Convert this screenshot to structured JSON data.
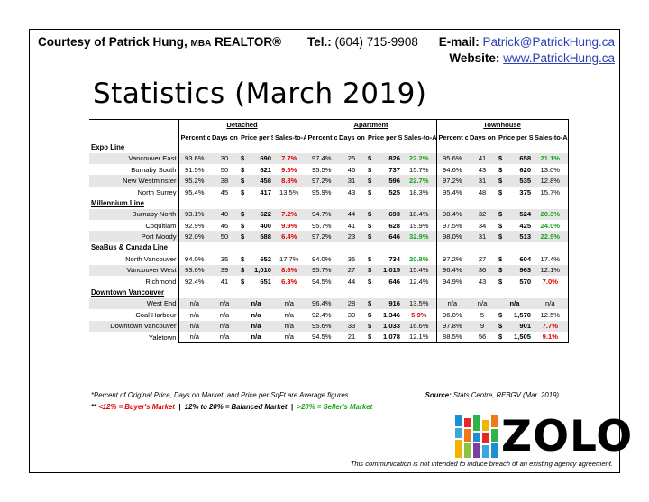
{
  "header": {
    "courtesy": "Courtesy of Patrick Hung,",
    "mba": "MBA",
    "realtor": "REALTOR®",
    "tel_label": "Tel.:",
    "tel_value": "(604) 715-9908",
    "email_label": "E-mail:",
    "email_value": "Patrick@PatrickHung.ca",
    "website_label": "Website:",
    "website_value": "www.PatrickHung.ca"
  },
  "title": "Statistics (March 2019)",
  "groups": [
    "Detached",
    "Apartment",
    "Townhouse"
  ],
  "columns": [
    "Percent of Original Price",
    "Days on Market",
    "Price per SqFt",
    "Sales-to-Active Ratio**"
  ],
  "colors": {
    "red": "#e00000",
    "green": "#1aa21a",
    "blue": "#2a3fb0",
    "shade": "#e6e6e6"
  },
  "sections": [
    {
      "name": "Expo Line",
      "rows": [
        {
          "area": "Vancouver East",
          "shade": true,
          "d": [
            "93.6%",
            "30",
            "690",
            "7.7%"
          ],
          "dc": "red",
          "a": [
            "97.4%",
            "25",
            "826",
            "22.2%"
          ],
          "ac": "green",
          "t": [
            "95.6%",
            "41",
            "658",
            "21.1%"
          ],
          "tc": "green"
        },
        {
          "area": "Burnaby South",
          "shade": false,
          "d": [
            "91.5%",
            "50",
            "621",
            "9.5%"
          ],
          "dc": "red",
          "a": [
            "95.5%",
            "46",
            "737",
            "15.7%"
          ],
          "ac": "",
          "t": [
            "94.6%",
            "43",
            "620",
            "13.0%"
          ],
          "tc": ""
        },
        {
          "area": "New Westminster",
          "shade": true,
          "d": [
            "95.2%",
            "38",
            "458",
            "8.8%"
          ],
          "dc": "red",
          "a": [
            "97.2%",
            "31",
            "596",
            "22.7%"
          ],
          "ac": "green",
          "t": [
            "97.2%",
            "31",
            "535",
            "12.8%"
          ],
          "tc": ""
        },
        {
          "area": "North Surrey",
          "shade": false,
          "d": [
            "95.4%",
            "45",
            "417",
            "13.5%"
          ],
          "dc": "",
          "a": [
            "95.9%",
            "43",
            "525",
            "18.3%"
          ],
          "ac": "",
          "t": [
            "95.4%",
            "48",
            "375",
            "15.7%"
          ],
          "tc": ""
        }
      ]
    },
    {
      "name": "Millennium Line",
      "rows": [
        {
          "area": "Burnaby North",
          "shade": true,
          "d": [
            "93.1%",
            "40",
            "622",
            "7.2%"
          ],
          "dc": "red",
          "a": [
            "94.7%",
            "44",
            "693",
            "18.4%"
          ],
          "ac": "",
          "t": [
            "98.4%",
            "32",
            "524",
            "20.3%"
          ],
          "tc": "green"
        },
        {
          "area": "Coquitlam",
          "shade": false,
          "d": [
            "92.9%",
            "46",
            "400",
            "9.9%"
          ],
          "dc": "red",
          "a": [
            "95.7%",
            "41",
            "628",
            "19.9%"
          ],
          "ac": "",
          "t": [
            "97.5%",
            "34",
            "425",
            "24.0%"
          ],
          "tc": "green"
        },
        {
          "area": "Port Moody",
          "shade": true,
          "d": [
            "92.0%",
            "50",
            "588",
            "6.4%"
          ],
          "dc": "red",
          "a": [
            "97.2%",
            "23",
            "646",
            "32.9%"
          ],
          "ac": "green",
          "t": [
            "98.0%",
            "31",
            "513",
            "22.9%"
          ],
          "tc": "green"
        }
      ]
    },
    {
      "name": "SeaBus & Canada Line",
      "rows": [
        {
          "area": "North Vancouver",
          "shade": false,
          "d": [
            "94.0%",
            "35",
            "652",
            "17.7%"
          ],
          "dc": "",
          "a": [
            "94.0%",
            "35",
            "734",
            "20.8%"
          ],
          "ac": "green",
          "t": [
            "97.2%",
            "27",
            "604",
            "17.4%"
          ],
          "tc": ""
        },
        {
          "area": "Vancouver West",
          "shade": true,
          "d": [
            "93.6%",
            "39",
            "1,010",
            "8.6%"
          ],
          "dc": "red",
          "a": [
            "95.7%",
            "27",
            "1,015",
            "15.4%"
          ],
          "ac": "",
          "t": [
            "96.4%",
            "36",
            "963",
            "12.1%"
          ],
          "tc": ""
        },
        {
          "area": "Richmond",
          "shade": false,
          "d": [
            "92.4%",
            "41",
            "651",
            "6.3%"
          ],
          "dc": "red",
          "a": [
            "94.5%",
            "44",
            "646",
            "12.4%"
          ],
          "ac": "",
          "t": [
            "94.9%",
            "43",
            "570",
            "7.0%"
          ],
          "tc": "red"
        }
      ]
    },
    {
      "name": "Downtown Vancouver",
      "rows": [
        {
          "area": "West End",
          "shade": true,
          "d": [
            "n/a",
            "n/a",
            "n/a",
            "n/a"
          ],
          "dc": "",
          "a": [
            "96.4%",
            "28",
            "916",
            "13.5%"
          ],
          "ac": "",
          "t": [
            "n/a",
            "n/a",
            "n/a",
            "n/a"
          ],
          "tc": ""
        },
        {
          "area": "Coal Harbour",
          "shade": false,
          "d": [
            "n/a",
            "n/a",
            "n/a",
            "n/a"
          ],
          "dc": "",
          "a": [
            "92.4%",
            "30",
            "1,346",
            "5.9%"
          ],
          "ac": "red",
          "t": [
            "96.0%",
            "5",
            "1,570",
            "12.5%"
          ],
          "tc": ""
        },
        {
          "area": "Downtown Vancouver",
          "shade": true,
          "d": [
            "n/a",
            "n/a",
            "n/a",
            "n/a"
          ],
          "dc": "",
          "a": [
            "95.6%",
            "33",
            "1,033",
            "16.6%"
          ],
          "ac": "",
          "t": [
            "97.8%",
            "9",
            "901",
            "7.7%"
          ],
          "tc": "red"
        },
        {
          "area": "Yaletown",
          "shade": false,
          "d": [
            "n/a",
            "n/a",
            "n/a",
            "n/a"
          ],
          "dc": "",
          "a": [
            "94.5%",
            "21",
            "1,078",
            "12.1%"
          ],
          "ac": "",
          "t": [
            "88.5%",
            "56",
            "1,505",
            "9.1%"
          ],
          "tc": "red"
        }
      ]
    }
  ],
  "footnotes": {
    "avg": "*Percent of Original Price, Days on Market, and Price per SqFt are Average figures.",
    "source_label": "Source:",
    "source_value": "Stats Centre, REBGV (Mar. 2019)",
    "legend_prefix": "**",
    "legend_buyer": "<12% = Buyer's Market",
    "legend_sep1": "|",
    "legend_balanced": "12% to 20% = Balanced Market",
    "legend_sep2": "|",
    "legend_seller": ">20% = Seller's Market",
    "disclaimer": "This communication is not intended to induce breach of an existing agency agreement."
  },
  "logo": {
    "text": "ZOLO",
    "icon": "zolo-bars-icon"
  }
}
